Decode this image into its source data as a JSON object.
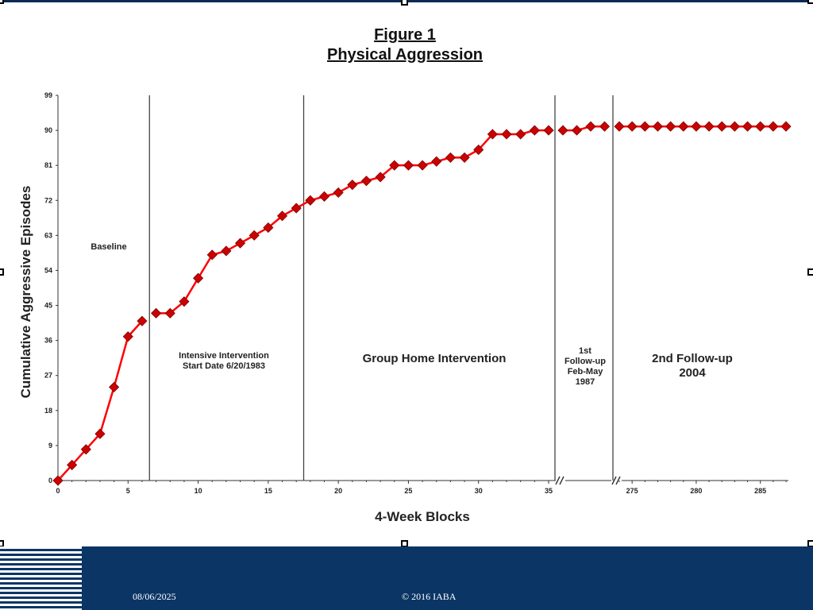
{
  "slide": {
    "title_line1": "Figure 1",
    "title_line2": "Physical Aggression",
    "footer_date": "08/06/2025",
    "footer_copyright": "© 2016 IABA"
  },
  "colors": {
    "series": "#ff0000",
    "marker": "#cc0000",
    "footer_bg": "#0b3565"
  },
  "chart_data": {
    "type": "line",
    "title": "Figure 1 Physical Aggression",
    "xlabel": "4-Week Blocks",
    "ylabel": "Cumulative Aggressive Episodes",
    "ylim": [
      0,
      99
    ],
    "yticks": [
      0,
      9,
      18,
      27,
      36,
      45,
      54,
      63,
      72,
      81,
      90,
      99
    ],
    "xticks_main": [
      0,
      5,
      10,
      15,
      20,
      25,
      30,
      35
    ],
    "xticks_followup": [
      275,
      280,
      285
    ],
    "xlim_main": [
      0,
      35
    ],
    "xlim_followup": [
      273,
      288
    ],
    "axis_breaks": [
      "between 35 and 1st follow-up",
      "between 1st follow-up and 275"
    ],
    "grid": false,
    "legend": "none",
    "phase_lines_x": [
      6.5,
      17.5
    ],
    "phases": [
      {
        "label_lines": [
          "Baseline"
        ]
      },
      {
        "label_lines": [
          "Intensive Intervention",
          "Start Date 6/20/1983"
        ]
      },
      {
        "label_lines": [
          "Group Home Intervention"
        ]
      },
      {
        "label_lines": [
          "1st",
          "Follow-up",
          "Feb-May",
          "1987"
        ]
      },
      {
        "label_lines": [
          "2nd Follow-up",
          "2004"
        ]
      }
    ],
    "series": [
      {
        "segment": "baseline",
        "x": [
          0,
          1,
          2,
          3,
          4,
          5,
          6
        ],
        "y": [
          0,
          4,
          8,
          12,
          24,
          37,
          41
        ]
      },
      {
        "segment": "intensive_and_group_home",
        "x": [
          7,
          8,
          9,
          10,
          11,
          12,
          13,
          14,
          15,
          16,
          17,
          18,
          19,
          20,
          21,
          22,
          23,
          24,
          25,
          26,
          27,
          28,
          29,
          30,
          31,
          32,
          33,
          34,
          35
        ],
        "y": [
          43,
          43,
          46,
          52,
          58,
          59,
          61,
          63,
          65,
          68,
          70,
          72,
          73,
          74,
          76,
          77,
          78,
          81,
          81,
          81,
          82,
          83,
          83,
          85,
          89,
          89,
          89,
          90,
          90
        ]
      },
      {
        "segment": "1st_followup",
        "x": [
          1,
          2,
          3,
          4
        ],
        "y": [
          90,
          90,
          91,
          91
        ]
      },
      {
        "segment": "2nd_followup",
        "x": [
          274,
          275,
          276,
          277,
          278,
          279,
          280,
          281,
          282,
          283,
          284,
          285,
          286,
          287
        ],
        "y": [
          91,
          91,
          91,
          91,
          91,
          91,
          91,
          91,
          91,
          91,
          91,
          91,
          91,
          91
        ]
      }
    ]
  }
}
